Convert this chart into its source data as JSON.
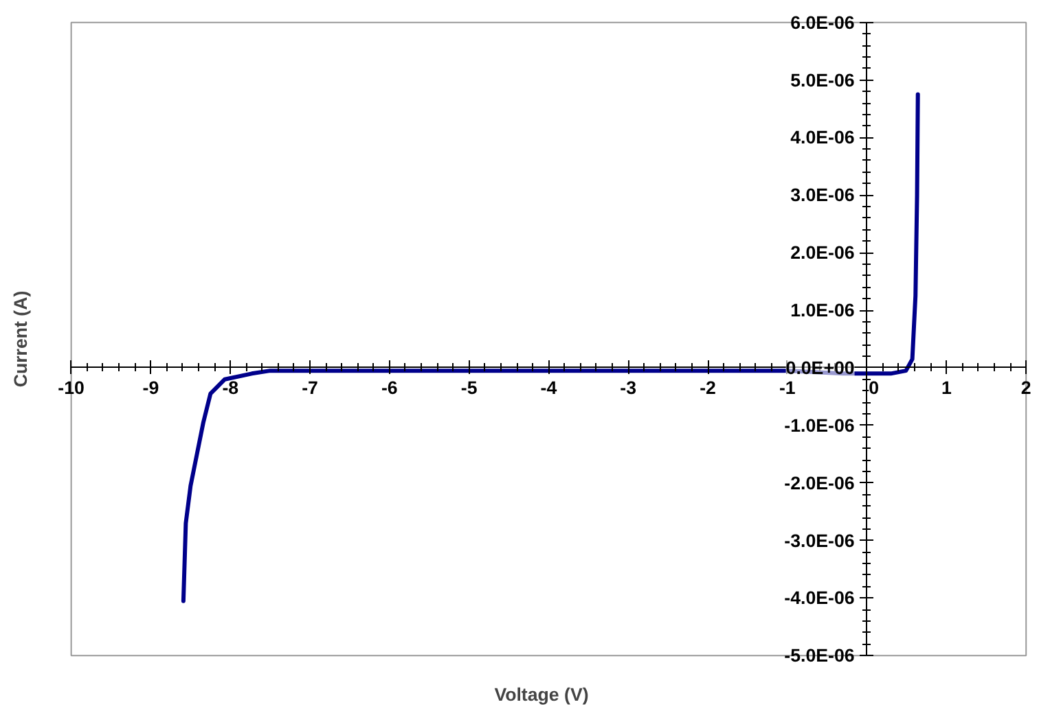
{
  "chart_data": {
    "type": "line",
    "xlabel": "Voltage (V)",
    "ylabel": "Current (A)",
    "x": [
      -8.59,
      -8.56,
      -8.5,
      -8.42,
      -8.34,
      -8.25,
      -8.07,
      -7.73,
      -7.5,
      -7,
      -6,
      -5,
      -4,
      -3,
      -2,
      -1,
      -0.3,
      0,
      0.3,
      0.49,
      0.57,
      0.61,
      0.63,
      0.64
    ],
    "series": [
      {
        "color": "#00008b",
        "values": [
          -4.05e-06,
          -2.7e-06,
          -2.05e-06,
          -1.5e-06,
          -9.5e-07,
          -4.5e-07,
          -2e-07,
          -1e-07,
          -5e-08,
          -5e-08,
          -5e-08,
          -5e-08,
          -5e-08,
          -5e-08,
          -5e-08,
          -5e-08,
          -1e-07,
          -1e-07,
          -1e-07,
          -5e-08,
          1.5e-07,
          1.25e-06,
          3e-06,
          4.75e-06
        ]
      }
    ],
    "xlim": [
      -10,
      2
    ],
    "ylim": [
      -5e-06,
      6e-06
    ],
    "xticks": [
      -10,
      -9,
      -8,
      -7,
      -6,
      -5,
      -4,
      -3,
      -2,
      -1,
      0,
      1,
      2
    ],
    "yticks": [
      {
        "value": -5e-06,
        "label": "-5.0E-06"
      },
      {
        "value": -4e-06,
        "label": "-4.0E-06"
      },
      {
        "value": -3e-06,
        "label": "-3.0E-06"
      },
      {
        "value": -2e-06,
        "label": "-2.0E-06"
      },
      {
        "value": -1e-06,
        "label": "-1.0E-06"
      },
      {
        "value": 0,
        "label": "0.0E+00"
      },
      {
        "value": 1e-06,
        "label": "1.0E-06"
      },
      {
        "value": 2e-06,
        "label": "2.0E-06"
      },
      {
        "value": 3e-06,
        "label": "3.0E-06"
      },
      {
        "value": 4e-06,
        "label": "4.0E-06"
      },
      {
        "value": 5e-06,
        "label": "5.0E-06"
      },
      {
        "value": 6e-06,
        "label": "6.0E-06"
      }
    ],
    "grid": false,
    "marker": "none",
    "line_style": "solid"
  }
}
